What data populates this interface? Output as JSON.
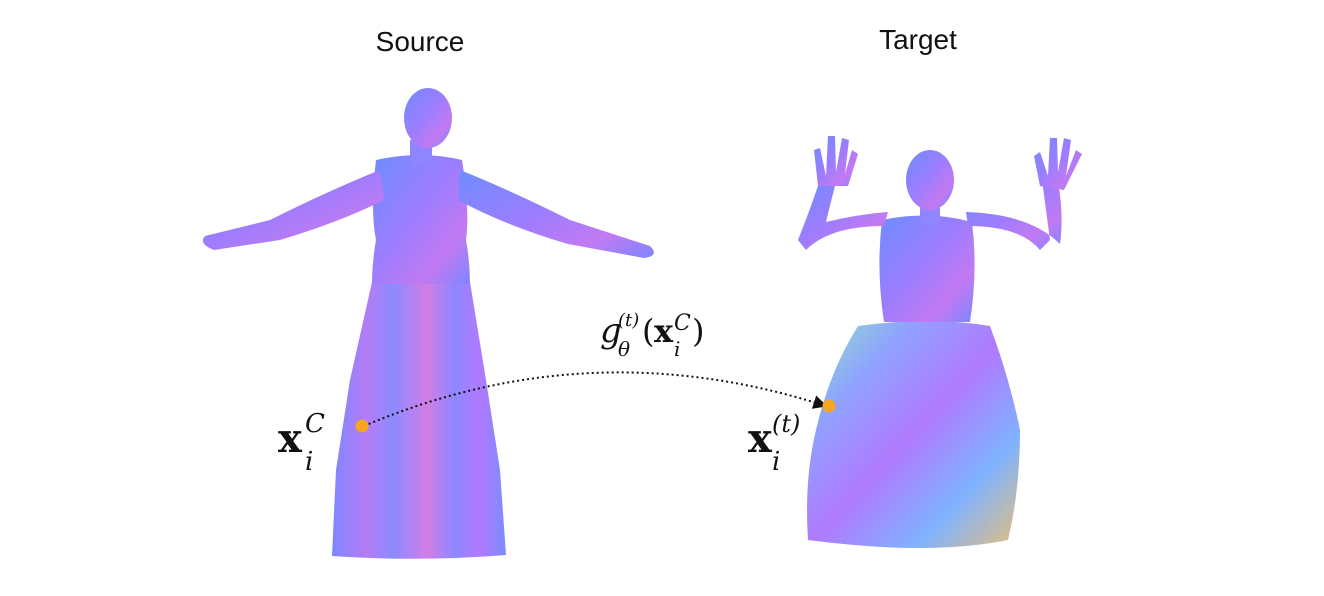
{
  "titles": {
    "source": "Source",
    "target": "Target"
  },
  "labels": {
    "canonical_point": {
      "base": "x",
      "sub": "i",
      "sup": "C"
    },
    "deformed_point": {
      "base": "x",
      "sub": "i",
      "sup": "(t)"
    },
    "mapping": {
      "func": "g",
      "func_sub": "θ",
      "func_sup": "(t)",
      "open": "(",
      "arg_base": "x",
      "arg_sub": "i",
      "arg_sup": "C",
      "close": ")"
    }
  },
  "colors": {
    "point": "#f5a623",
    "arrow": "#111111",
    "mesh_blue": "#7d86ff",
    "mesh_violet": "#b07aff",
    "mesh_pink": "#e07ee8",
    "mesh_green": "#8fe6b4"
  }
}
